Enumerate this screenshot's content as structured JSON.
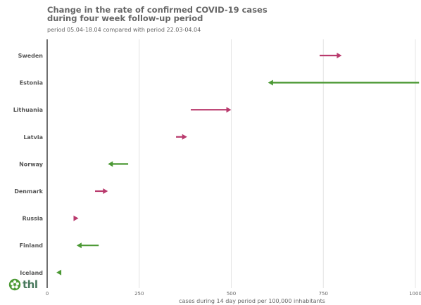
{
  "chart_data": {
    "type": "arrow",
    "title": "Change in the rate of confirmed COVID-19 cases during four week follow-up period",
    "subtitle": "period 05.04-18.04 compared with period 22.03-04.04",
    "xlabel": "cases during 14 day period per 100,000 inhabitants",
    "xlim": [
      0,
      1000
    ],
    "xticks": [
      "0",
      "250",
      "500",
      "750",
      "1000"
    ],
    "categories": [
      "Sweden",
      "Estonia",
      "Lithuania",
      "Latvia",
      "Norway",
      "Denmark",
      "Russia",
      "Finland",
      "Iceland"
    ],
    "series": [
      {
        "from": 740,
        "to": 800
      },
      {
        "from": 1010,
        "to": 600
      },
      {
        "from": 390,
        "to": 500
      },
      {
        "from": 350,
        "to": 380
      },
      {
        "from": 220,
        "to": 165
      },
      {
        "from": 130,
        "to": 165
      },
      {
        "from": 75,
        "to": 85
      },
      {
        "from": 140,
        "to": 80
      },
      {
        "from": 38,
        "to": 25
      }
    ],
    "colors": {
      "increase": "#b93a6d",
      "decrease": "#4b9934"
    },
    "grid": true
  },
  "logo": {
    "text": "thl"
  }
}
